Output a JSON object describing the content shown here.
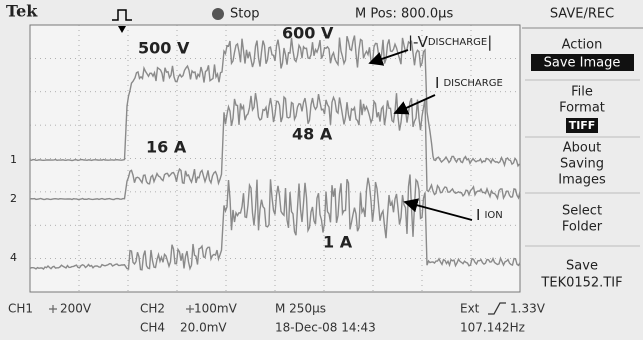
{
  "header": {
    "brand": "Tek",
    "state": "Stop",
    "position": "M Pos: 800.0µs",
    "menu_title": "SAVE/REC"
  },
  "menu": [
    {
      "label": [
        "Action"
      ],
      "value": "Save Image"
    },
    {
      "label": [
        "File",
        "Format"
      ],
      "value": "TIFF"
    },
    {
      "label": [
        "About",
        "Saving",
        "Images"
      ]
    },
    {
      "label": [
        "Select",
        "Folder"
      ]
    },
    {
      "label": [
        "Save"
      ],
      "value": "TEK0152.TIF"
    }
  ],
  "annotations": {
    "v1": "500 V",
    "v2": "600 V",
    "i1": "16 A",
    "i2": "48 A",
    "i3": "1 A",
    "vdis": {
      "prefix": "|-V",
      "sub": "DISCHARGE",
      "suffix": "|"
    },
    "idis": {
      "main": "I",
      "sub": "DISCHARGE"
    },
    "iion": {
      "main": "I",
      "sub": "ION"
    }
  },
  "channel_markers": [
    "1",
    "2",
    "4"
  ],
  "footer": {
    "ch1": "CH1",
    "ch1_scale": "200V",
    "ch2": "CH2",
    "ch2_scale": "100mV",
    "ch4": "CH4",
    "ch4_scale": "20.0mV",
    "timebase": "M 250µs",
    "date": "18-Dec-08 14:43",
    "trigger": "Ext",
    "trigger_level": "1.33V",
    "frequency": "107.142Hz"
  }
}
